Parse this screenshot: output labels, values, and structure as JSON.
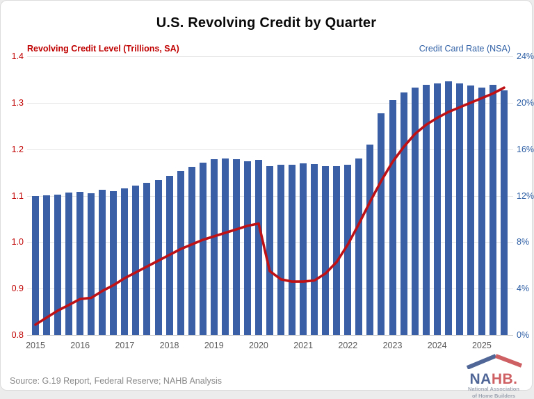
{
  "title": "U.S. Revolving Credit by Quarter",
  "left_axis": {
    "label": "Revolving Credit Level (Trillions, SA)",
    "ticks": [
      "1.4",
      "1.3",
      "1.2",
      "1.1",
      "1.0",
      "0.9",
      "0.8"
    ],
    "color": "#C00000"
  },
  "right_axis": {
    "label": "Credit Card Rate (NSA)",
    "ticks": [
      "24%",
      "20%",
      "16%",
      "12%",
      "8%",
      "4%",
      "0%"
    ],
    "color": "#2E5FA5"
  },
  "x_axis": {
    "years": [
      "2015",
      "2016",
      "2017",
      "2018",
      "2019",
      "2020",
      "2021",
      "2022",
      "2023",
      "2024",
      "2025"
    ]
  },
  "source": "Source: G.19 Report, Federal Reserve; NAHB Analysis",
  "logo": {
    "na": "NA",
    "hb": "HB.",
    "subtitle_line1": "National Association",
    "subtitle_line2": "of Home Builders",
    "roof_left_color": "#24407c",
    "roof_right_color": "#c2383d"
  },
  "chart_data": {
    "type": "bar",
    "title": "U.S. Revolving Credit by Quarter",
    "x": [
      "2015 Q1",
      "2015 Q2",
      "2015 Q3",
      "2015 Q4",
      "2016 Q1",
      "2016 Q2",
      "2016 Q3",
      "2016 Q4",
      "2017 Q1",
      "2017 Q2",
      "2017 Q3",
      "2017 Q4",
      "2018 Q1",
      "2018 Q2",
      "2018 Q3",
      "2018 Q4",
      "2019 Q1",
      "2019 Q2",
      "2019 Q3",
      "2019 Q4",
      "2020 Q1",
      "2020 Q2",
      "2020 Q3",
      "2020 Q4",
      "2021 Q1",
      "2021 Q2",
      "2021 Q3",
      "2021 Q4",
      "2022 Q1",
      "2022 Q2",
      "2022 Q3",
      "2022 Q4",
      "2023 Q1",
      "2023 Q2",
      "2023 Q3",
      "2023 Q4",
      "2024 Q1",
      "2024 Q2",
      "2024 Q3",
      "2024 Q4",
      "2025 Q1",
      "2025 Q2",
      "2025 Q3"
    ],
    "series": [
      {
        "name": "Revolving Credit Level (Trillions, SA)",
        "type": "bar",
        "axis": "left",
        "color": "#3A5FA6",
        "values": [
          1.1,
          1.101,
          1.103,
          1.107,
          1.108,
          1.105,
          1.112,
          1.11,
          1.116,
          1.121,
          1.128,
          1.133,
          1.142,
          1.153,
          1.162,
          1.171,
          1.178,
          1.18,
          1.178,
          1.174,
          1.177,
          1.163,
          1.166,
          1.167,
          1.17,
          1.168,
          1.164,
          1.164,
          1.166,
          1.18,
          1.21,
          1.278,
          1.306,
          1.322,
          1.332,
          1.339,
          1.341,
          1.346,
          1.341,
          1.337,
          1.332,
          1.338,
          1.326
        ]
      },
      {
        "name": "Credit Card Rate (NSA)",
        "type": "line",
        "axis": "right",
        "color": "#BE1116",
        "values": [
          0.9,
          1.5,
          2.1,
          2.6,
          3.1,
          3.2,
          3.8,
          4.3,
          4.9,
          5.4,
          5.9,
          6.4,
          6.9,
          7.4,
          7.8,
          8.2,
          8.5,
          8.8,
          9.1,
          9.4,
          9.6,
          5.5,
          4.8,
          4.6,
          4.6,
          4.7,
          5.3,
          6.3,
          7.8,
          9.6,
          11.5,
          13.3,
          14.9,
          16.2,
          17.3,
          18.1,
          18.7,
          19.2,
          19.6,
          20.0,
          20.4,
          20.8,
          21.3
        ]
      }
    ],
    "left_ylim": [
      0.8,
      1.4
    ],
    "right_ylim": [
      0,
      24
    ],
    "grid": true,
    "legend_position": "none"
  }
}
